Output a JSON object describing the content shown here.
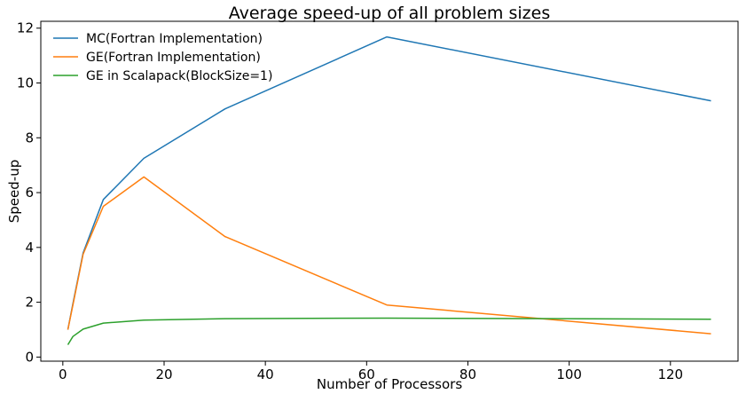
{
  "chart_data": {
    "type": "line",
    "title": "Average speed-up of all problem sizes",
    "xlabel": "Number of Processors",
    "ylabel": "Speed-up",
    "xlim": [
      -4.35,
      133.35
    ],
    "ylim": [
      -0.15,
      12.25
    ],
    "xticks": [
      0,
      20,
      40,
      60,
      80,
      100,
      120
    ],
    "yticks": [
      0,
      2,
      4,
      6,
      8,
      10,
      12
    ],
    "grid": false,
    "legend_position": "upper-left",
    "series": [
      {
        "name": "MC(Fortran Implementation)",
        "color": "#1f77b4",
        "x": [
          1,
          2,
          4,
          8,
          16,
          32,
          64,
          128
        ],
        "y": [
          1.0,
          1.95,
          3.8,
          5.75,
          7.25,
          9.05,
          11.68,
          9.35
        ]
      },
      {
        "name": "GE(Fortran Implementation)",
        "color": "#ff7f0e",
        "x": [
          1,
          2,
          4,
          8,
          16,
          32,
          64,
          128
        ],
        "y": [
          1.0,
          1.9,
          3.75,
          5.5,
          6.57,
          4.4,
          1.9,
          0.85
        ]
      },
      {
        "name": "GE in Scalapack(BlockSize=1)",
        "color": "#2ca02c",
        "x": [
          1,
          2,
          4,
          8,
          16,
          32,
          64,
          128
        ],
        "y": [
          0.45,
          0.75,
          1.02,
          1.24,
          1.35,
          1.4,
          1.42,
          1.38
        ]
      }
    ]
  }
}
